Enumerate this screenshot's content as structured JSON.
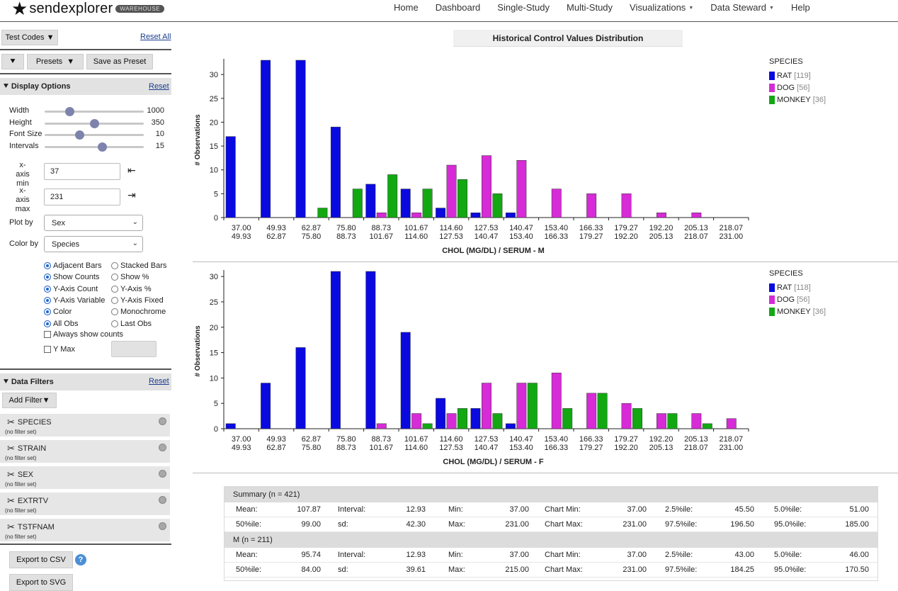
{
  "topbar": {
    "brand": "sendexplorer",
    "badge": "WAREHOUSE",
    "nav": [
      {
        "label": "Home",
        "dropdown": false
      },
      {
        "label": "Dashboard",
        "dropdown": false
      },
      {
        "label": "Single-Study",
        "dropdown": false
      },
      {
        "label": "Multi-Study",
        "dropdown": false
      },
      {
        "label": "Visualizations",
        "dropdown": true
      },
      {
        "label": "Data Steward",
        "dropdown": true
      },
      {
        "label": "Help",
        "dropdown": false
      }
    ]
  },
  "sidebar": {
    "test_codes": "Test Codes ▼",
    "reset_all": "Reset All",
    "collapse": "»",
    "presets": "Presets",
    "presets_caret": "▼",
    "save_preset": "Save as Preset",
    "display_options": "Display Options",
    "display_reset": "Reset",
    "sliders": [
      {
        "label": "Width",
        "value": "1000",
        "fraction": 0.25
      },
      {
        "label": "Height",
        "value": "350",
        "fraction": 0.5
      },
      {
        "label": "Font Size",
        "value": "10",
        "fraction": 0.35
      },
      {
        "label": "Intervals",
        "value": "15",
        "fraction": 0.58
      }
    ],
    "xmin_label": "x-axis min",
    "xmin_line1": "x-axis",
    "xmin_line2": "min",
    "xmin_value": "37",
    "xmax_line1": "x-axis",
    "xmax_line2": "max",
    "xmax_value": "231",
    "plot_by_label": "Plot by",
    "plot_by_value": "Sex",
    "color_by_label": "Color by",
    "color_by_value": "Species",
    "radios": [
      {
        "left": "Adjacent Bars",
        "left_on": true,
        "right": "Stacked Bars",
        "right_on": false
      },
      {
        "left": "Show Counts",
        "left_on": true,
        "right": "Show %",
        "right_on": false
      },
      {
        "left": "Y-Axis Count",
        "left_on": true,
        "right": "Y-Axis %",
        "right_on": false
      },
      {
        "left": "Y-Axis Variable",
        "left_on": true,
        "right": "Y-Axis Fixed",
        "right_on": false
      },
      {
        "left": "Color",
        "left_on": true,
        "right": "Monochrome",
        "right_on": false
      },
      {
        "left": "All Obs",
        "left_on": true,
        "right": "Last Obs",
        "right_on": false
      }
    ],
    "always_show_counts": "Always show counts",
    "ymax_label": "Y Max",
    "data_filters": "Data Filters",
    "filters_reset": "Reset",
    "add_filter": "Add Filter▼",
    "filters": [
      {
        "name": "SPECIES",
        "status": "(no filter set)"
      },
      {
        "name": "STRAIN",
        "status": "(no filter set)"
      },
      {
        "name": "SEX",
        "status": "(no filter set)"
      },
      {
        "name": "EXTRTV",
        "status": "(no filter set)"
      },
      {
        "name": "TSTFNAM",
        "status": "(no filter set)"
      }
    ],
    "export_csv": "Export to CSV",
    "export_svg": "Export to SVG",
    "help_glyph": "?"
  },
  "main": {
    "title": "Historical Control Values Distribution"
  },
  "colors": {
    "rat": "#0a0ae0",
    "dog": "#d62bd6",
    "monkey": "#12a812"
  },
  "chart_data": [
    {
      "type": "bar",
      "title": "CHOL (MG/DL) / SERUM - M",
      "xlabel": "CHOL (MG/DL) / SERUM - M",
      "ylabel": "# Observations",
      "ylim": [
        0,
        33
      ],
      "yticks": [
        "0",
        "5",
        "10",
        "15",
        "20",
        "25",
        "30"
      ],
      "categories": [
        [
          "37.00",
          "49.93"
        ],
        [
          "49.93",
          "62.87"
        ],
        [
          "62.87",
          "75.80"
        ],
        [
          "75.80",
          "88.73"
        ],
        [
          "88.73",
          "101.67"
        ],
        [
          "101.67",
          "114.60"
        ],
        [
          "114.60",
          "127.53"
        ],
        [
          "127.53",
          "140.47"
        ],
        [
          "140.47",
          "153.40"
        ],
        [
          "153.40",
          "166.33"
        ],
        [
          "166.33",
          "179.27"
        ],
        [
          "179.27",
          "192.20"
        ],
        [
          "192.20",
          "205.13"
        ],
        [
          "205.13",
          "218.07"
        ],
        [
          "218.07",
          "231.00"
        ]
      ],
      "legend_title": "SPECIES",
      "series": [
        {
          "name": "RAT",
          "count": "[119]",
          "values": [
            17,
            33,
            33,
            19,
            7,
            6,
            2,
            1,
            1,
            0,
            0,
            0,
            0,
            0,
            0
          ]
        },
        {
          "name": "DOG",
          "count": "[56]",
          "values": [
            0,
            0,
            0,
            0,
            1,
            1,
            11,
            13,
            12,
            6,
            5,
            5,
            1,
            1,
            0
          ]
        },
        {
          "name": "MONKEY",
          "count": "[36]",
          "values": [
            0,
            0,
            2,
            6,
            9,
            6,
            8,
            5,
            0,
            0,
            0,
            0,
            0,
            0,
            0
          ]
        }
      ]
    },
    {
      "type": "bar",
      "title": "CHOL (MG/DL) / SERUM - F",
      "xlabel": "CHOL (MG/DL) / SERUM - F",
      "ylabel": "# Observations",
      "ylim": [
        0,
        31
      ],
      "yticks": [
        "0",
        "5",
        "10",
        "15",
        "20",
        "25",
        "30"
      ],
      "categories": [
        [
          "37.00",
          "49.93"
        ],
        [
          "49.93",
          "62.87"
        ],
        [
          "62.87",
          "75.80"
        ],
        [
          "75.80",
          "88.73"
        ],
        [
          "88.73",
          "101.67"
        ],
        [
          "101.67",
          "114.60"
        ],
        [
          "114.60",
          "127.53"
        ],
        [
          "127.53",
          "140.47"
        ],
        [
          "140.47",
          "153.40"
        ],
        [
          "153.40",
          "166.33"
        ],
        [
          "166.33",
          "179.27"
        ],
        [
          "179.27",
          "192.20"
        ],
        [
          "192.20",
          "205.13"
        ],
        [
          "205.13",
          "218.07"
        ],
        [
          "218.07",
          "231.00"
        ]
      ],
      "legend_title": "SPECIES",
      "series": [
        {
          "name": "RAT",
          "count": "[118]",
          "values": [
            1,
            9,
            16,
            31,
            31,
            19,
            6,
            4,
            1,
            0,
            0,
            0,
            0,
            0,
            0
          ]
        },
        {
          "name": "DOG",
          "count": "[56]",
          "values": [
            0,
            0,
            0,
            0,
            1,
            3,
            3,
            9,
            9,
            11,
            7,
            5,
            3,
            3,
            2
          ]
        },
        {
          "name": "MONKEY",
          "count": "[36]",
          "values": [
            0,
            0,
            0,
            0,
            0,
            1,
            4,
            3,
            9,
            4,
            7,
            4,
            3,
            1,
            0
          ]
        }
      ]
    }
  ],
  "summary": {
    "groups": [
      {
        "title": "Summary (n = 421)",
        "rows": [
          [
            "Mean:",
            "107.87",
            "Interval:",
            "12.93",
            "Min:",
            "37.00",
            "Chart Min:",
            "37.00",
            "2.5%ile:",
            "45.50",
            "5.0%ile:",
            "51.00"
          ],
          [
            "50%ile:",
            "99.00",
            "sd:",
            "42.30",
            "Max:",
            "231.00",
            "Chart Max:",
            "231.00",
            "97.5%ile:",
            "196.50",
            "95.0%ile:",
            "185.00"
          ]
        ]
      },
      {
        "title": "M (n = 211)",
        "rows": [
          [
            "Mean:",
            "95.74",
            "Interval:",
            "12.93",
            "Min:",
            "37.00",
            "Chart Min:",
            "37.00",
            "2.5%ile:",
            "43.00",
            "5.0%ile:",
            "46.00"
          ],
          [
            "50%ile:",
            "84.00",
            "sd:",
            "39.61",
            "Max:",
            "215.00",
            "Chart Max:",
            "231.00",
            "97.5%ile:",
            "184.25",
            "95.0%ile:",
            "170.50"
          ]
        ]
      }
    ]
  }
}
